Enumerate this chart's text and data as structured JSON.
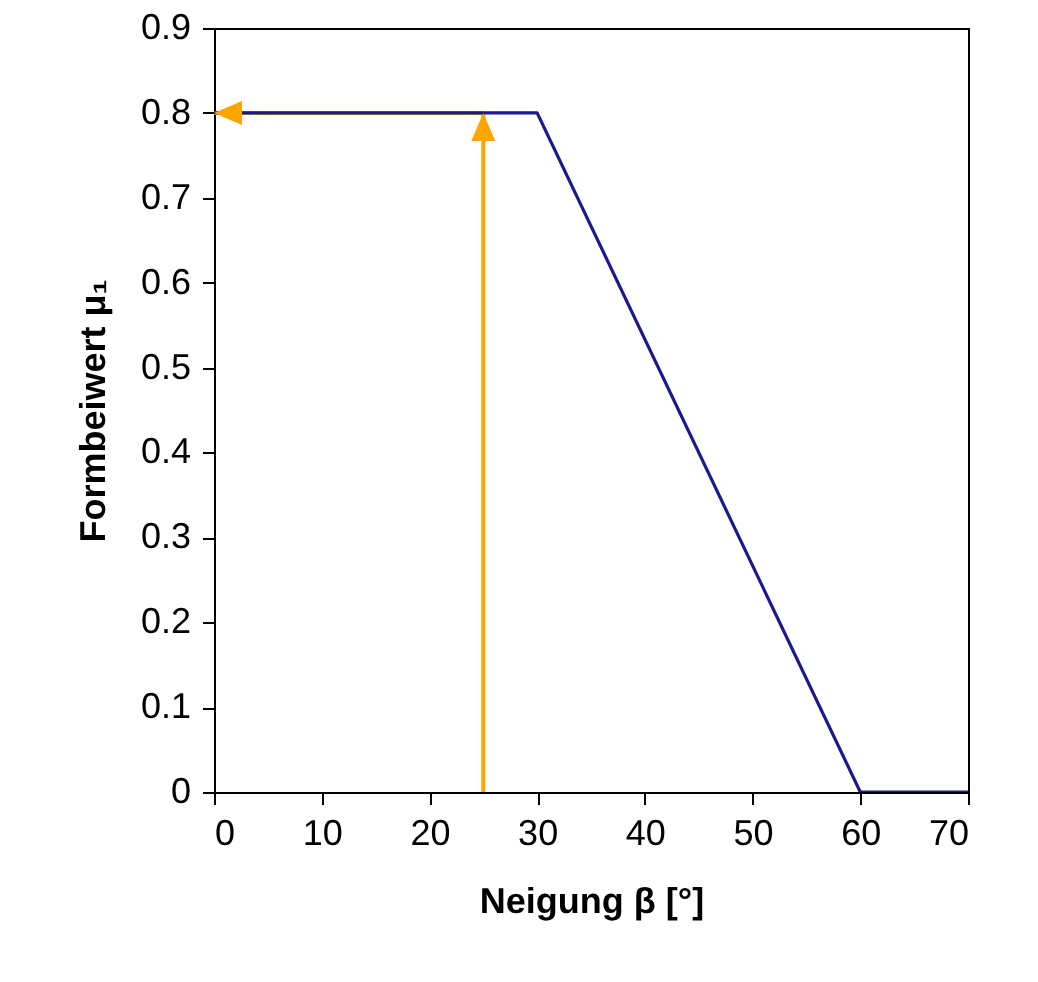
{
  "chart_data": {
    "type": "line",
    "xlabel": "Neigung β [°]",
    "ylabel": "Formbeiwert μ₁",
    "xlim": [
      0,
      70
    ],
    "ylim": [
      0,
      0.9
    ],
    "xticks": [
      0,
      10,
      20,
      30,
      40,
      50,
      60,
      70
    ],
    "yticks": [
      0,
      0.1,
      0.2,
      0.3,
      0.4,
      0.5,
      0.6,
      0.7,
      0.8,
      0.9
    ],
    "grid": false,
    "marker": "none",
    "line_style": "solid",
    "ref_lines": [
      {
        "axis": "x",
        "value": 25,
        "color": "#ffa500"
      },
      {
        "axis": "y",
        "value": 0.8,
        "color": "#ffa500"
      }
    ],
    "series": [
      {
        "color": "#1a1a8c",
        "x": [
          0,
          30,
          60,
          70
        ],
        "values": [
          0.8,
          0.8,
          0,
          0
        ]
      }
    ]
  }
}
